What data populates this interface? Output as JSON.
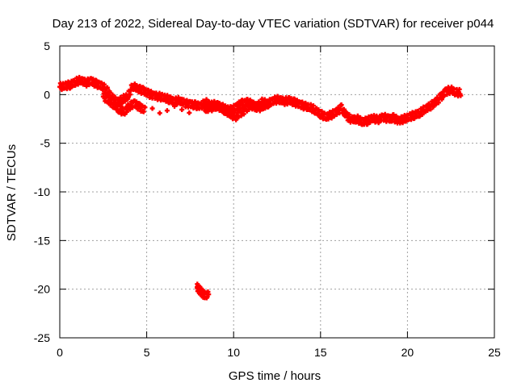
{
  "chart_data": {
    "type": "scatter",
    "title": "Day 213 of 2022, Sidereal Day-to-day VTEC variation (SDTVAR) for receiver p044",
    "xlabel": "GPS time / hours",
    "ylabel": "SDTVAR / TECUs",
    "xlim": [
      0,
      25
    ],
    "ylim": [
      -25,
      5
    ],
    "xticks": [
      0,
      5,
      10,
      15,
      20,
      25
    ],
    "yticks": [
      5,
      0,
      -5,
      -10,
      -15,
      -20,
      -25
    ],
    "grid": true,
    "series": [
      {
        "name": "SDTVAR",
        "color": "#ff0000",
        "x": [
          0.0,
          0.3,
          0.6,
          0.9,
          1.2,
          1.5,
          1.8,
          2.1,
          2.4,
          2.7,
          3.0,
          3.3,
          3.6,
          3.9,
          4.2,
          4.5,
          4.8,
          5.1,
          5.4,
          5.7,
          6.0,
          6.3,
          6.6,
          6.9,
          7.2,
          7.5,
          7.8,
          8.1,
          8.4,
          8.7,
          9.0,
          9.3,
          9.6,
          9.9,
          10.2,
          10.5,
          10.8,
          11.1,
          11.4,
          11.7,
          12.0,
          12.3,
          12.6,
          12.9,
          13.2,
          13.5,
          13.8,
          14.1,
          14.4,
          14.7,
          15.0,
          15.3,
          15.6,
          15.9,
          16.2,
          16.5,
          16.8,
          17.1,
          17.4,
          17.7,
          18.0,
          18.3,
          18.6,
          18.9,
          19.2,
          19.5,
          19.8,
          20.1,
          20.4,
          20.7,
          21.0,
          21.3,
          21.6,
          21.9,
          22.2,
          22.5,
          22.8
        ],
        "y": [
          0.8,
          0.9,
          1.0,
          1.3,
          1.5,
          1.2,
          1.4,
          1.1,
          0.9,
          0.5,
          -0.3,
          -0.8,
          -0.5,
          -0.2,
          0.9,
          0.6,
          0.4,
          0.1,
          -0.1,
          -0.2,
          -0.3,
          -0.5,
          -0.7,
          -0.6,
          -0.9,
          -1.0,
          -1.1,
          -1.2,
          -0.8,
          -1.1,
          -1.0,
          -1.3,
          -1.5,
          -1.6,
          -1.2,
          -0.9,
          -0.8,
          -1.0,
          -1.4,
          -1.2,
          -0.9,
          -0.6,
          -0.5,
          -0.7,
          -0.6,
          -0.8,
          -1.0,
          -1.2,
          -1.3,
          -1.6,
          -2.0,
          -2.3,
          -2.1,
          -1.8,
          -1.4,
          -2.2,
          -2.6,
          -2.5,
          -2.8,
          -2.7,
          -2.4,
          -2.6,
          -2.3,
          -2.5,
          -2.4,
          -2.7,
          -2.5,
          -2.3,
          -2.1,
          -1.9,
          -1.5,
          -1.2,
          -0.8,
          -0.3,
          0.3,
          0.5,
          0.2
        ]
      },
      {
        "name": "SDTVAR-outlier",
        "color": "#ff0000",
        "x": [
          7.9,
          8.0,
          8.1,
          8.2,
          8.3
        ],
        "y": [
          -19.8,
          -20.0,
          -20.2,
          -20.4,
          -20.6
        ]
      },
      {
        "name": "SDTVAR-lower",
        "color": "#ff0000",
        "x": [
          2.5,
          2.8,
          3.1,
          3.4,
          3.7,
          4.0,
          4.3,
          4.6,
          4.9,
          8.3,
          8.6,
          9.0,
          9.5,
          9.8,
          10.1,
          10.4,
          10.7,
          11.0,
          11.3,
          11.6
        ],
        "y": [
          -0.2,
          -0.6,
          -1.0,
          -1.5,
          -1.8,
          -1.2,
          -0.9,
          -1.3,
          -1.6,
          -1.5,
          -1.4,
          -1.2,
          -1.6,
          -2.0,
          -2.3,
          -1.9,
          -1.5,
          -1.1,
          -1.3,
          -0.8
        ]
      }
    ]
  }
}
